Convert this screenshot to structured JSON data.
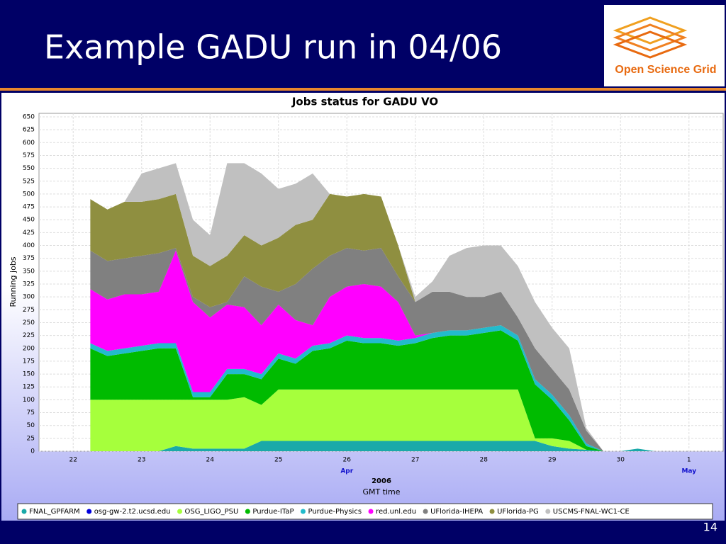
{
  "slide": {
    "title": "Example GADU run in 04/06",
    "logo_text": "Open Science Grid",
    "page_number": "14"
  },
  "chart_data": {
    "type": "stacked_area",
    "title": "Jobs status for GADU VO",
    "ylabel": "Running jobs",
    "xlabel": "GMT time",
    "year_label": "2006",
    "month_labels": [
      {
        "value": 26,
        "label": "Apr"
      },
      {
        "value": 31,
        "label": "May"
      }
    ],
    "x": [
      22.25,
      22.5,
      22.75,
      23,
      23.25,
      23.5,
      23.75,
      24,
      24.25,
      24.5,
      24.75,
      25,
      25.25,
      25.5,
      25.75,
      26,
      26.25,
      26.5,
      26.75,
      27,
      27.25,
      27.5,
      27.75,
      28,
      28.25,
      28.5,
      28.75,
      29,
      29.25,
      29.5,
      29.75,
      30,
      30.25,
      30.5
    ],
    "xlim": [
      21.5,
      31.5
    ],
    "xticks": [
      22,
      23,
      24,
      25,
      26,
      27,
      28,
      29,
      30,
      {
        "value": 31,
        "label": "1"
      }
    ],
    "ylim": [
      0,
      650
    ],
    "yticks": [
      0,
      25,
      50,
      75,
      100,
      125,
      150,
      175,
      200,
      225,
      250,
      275,
      300,
      325,
      350,
      375,
      400,
      425,
      450,
      475,
      500,
      525,
      550,
      575,
      600,
      625,
      650
    ],
    "grid": true,
    "series": [
      {
        "name": "FNAL_GPFARM",
        "color": "#1aa9a9",
        "values": [
          0,
          0,
          0,
          0,
          0,
          10,
          5,
          5,
          5,
          5,
          20,
          20,
          20,
          20,
          20,
          20,
          20,
          20,
          20,
          20,
          20,
          20,
          20,
          20,
          20,
          20,
          20,
          10,
          5,
          3,
          0,
          0,
          5,
          0
        ]
      },
      {
        "name": "osg-gw-2.t2.ucsd.edu",
        "color": "#0000dd",
        "values": [
          0,
          0,
          0,
          0,
          0,
          0,
          0,
          0,
          0,
          0,
          0,
          0,
          0,
          0,
          0,
          0,
          0,
          0,
          0,
          0,
          0,
          0,
          0,
          0,
          0,
          0,
          0,
          0,
          0,
          0,
          0,
          0,
          0,
          0
        ]
      },
      {
        "name": "OSG_LIGO_PSU",
        "color": "#a6ff3c",
        "values": [
          100,
          100,
          100,
          100,
          100,
          90,
          95,
          95,
          95,
          100,
          70,
          100,
          100,
          100,
          100,
          100,
          100,
          100,
          100,
          100,
          100,
          100,
          100,
          100,
          100,
          100,
          5,
          15,
          15,
          0,
          0,
          0,
          0,
          0
        ]
      },
      {
        "name": "Purdue-ITaP",
        "color": "#00bb00",
        "values": [
          100,
          85,
          90,
          95,
          100,
          100,
          5,
          5,
          50,
          45,
          50,
          60,
          50,
          75,
          80,
          95,
          90,
          90,
          85,
          90,
          100,
          105,
          105,
          110,
          115,
          95,
          105,
          75,
          40,
          7,
          0,
          0,
          0,
          0
        ]
      },
      {
        "name": "Purdue-Physics",
        "color": "#22bbcc",
        "values": [
          10,
          10,
          10,
          10,
          10,
          10,
          10,
          10,
          10,
          10,
          10,
          10,
          10,
          10,
          10,
          10,
          10,
          10,
          10,
          10,
          10,
          10,
          10,
          10,
          10,
          10,
          10,
          10,
          10,
          5,
          0,
          0,
          0,
          0
        ]
      },
      {
        "name": "red.unl.edu",
        "color": "#ff00ff",
        "values": [
          105,
          100,
          105,
          100,
          100,
          180,
          175,
          145,
          125,
          120,
          95,
          95,
          75,
          40,
          90,
          95,
          105,
          100,
          75,
          5,
          0,
          0,
          0,
          0,
          0,
          0,
          0,
          0,
          0,
          0,
          0,
          0,
          0,
          0
        ]
      },
      {
        "name": "UFlorida-IHEPA",
        "color": "#808080",
        "values": [
          75,
          75,
          70,
          75,
          75,
          5,
          10,
          20,
          5,
          60,
          75,
          25,
          70,
          110,
          80,
          75,
          65,
          75,
          50,
          65,
          80,
          75,
          65,
          60,
          65,
          35,
          60,
          50,
          50,
          25,
          0,
          0,
          0,
          0
        ]
      },
      {
        "name": "UFlorida-PG",
        "color": "#8f8f40",
        "values": [
          100,
          100,
          110,
          105,
          105,
          105,
          80,
          80,
          90,
          80,
          80,
          105,
          115,
          95,
          120,
          100,
          110,
          100,
          60,
          0,
          0,
          0,
          0,
          0,
          0,
          0,
          0,
          0,
          0,
          0,
          0,
          0,
          0,
          0
        ]
      },
      {
        "name": "USCMS-FNAL-WC1-CE",
        "color": "#c0c0c0",
        "values": [
          0,
          0,
          0,
          55,
          60,
          60,
          70,
          60,
          180,
          140,
          140,
          95,
          80,
          90,
          0,
          0,
          0,
          0,
          0,
          10,
          20,
          70,
          95,
          100,
          90,
          100,
          90,
          80,
          80,
          5,
          0,
          0,
          0,
          0
        ]
      }
    ]
  }
}
